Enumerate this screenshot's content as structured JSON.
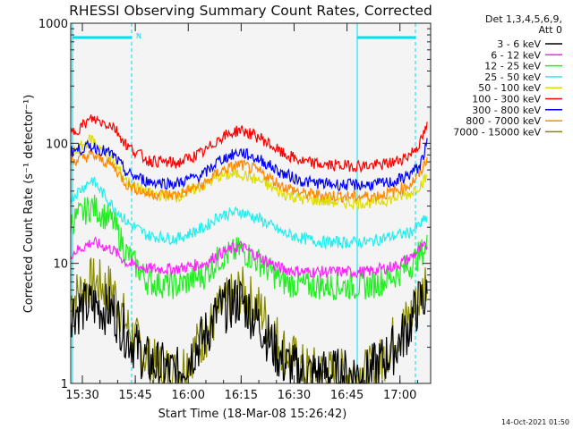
{
  "chart_data": {
    "type": "line",
    "title": "RHESSI Observing Summary Count Rates, Corrected",
    "xlabel": "Start Time (18-Mar-08 15:26:42)",
    "ylabel": "Corrected Count Rate (s⁻¹ detector⁻¹)",
    "x_ticks": [
      "15:30",
      "15:45",
      "16:00",
      "16:15",
      "16:30",
      "16:45",
      "17:00"
    ],
    "x_tick_minutes": [
      3.3,
      18.3,
      33.3,
      48.3,
      63.3,
      78.3,
      93.3
    ],
    "xlim_minutes": [
      0,
      102
    ],
    "y_scale": "log",
    "y_ticks": [
      "1000",
      "100",
      "10",
      "1"
    ],
    "y_tick_values": [
      1000,
      100,
      10,
      1
    ],
    "ylim": [
      1,
      1000
    ],
    "legend_header": [
      "Det 1,3,4,5,6,9,",
      "Att 0"
    ],
    "legend_position": "top-right",
    "x_minutes": [
      0,
      6,
      12,
      16,
      22,
      30,
      38,
      42,
      48,
      54,
      60,
      66,
      72,
      78,
      84,
      88,
      92,
      96,
      99,
      101
    ],
    "series": [
      {
        "name": "3 - 6 keV",
        "color": "#000000",
        "values": [
          4,
          4.5,
          4,
          2.5,
          1.5,
          1.2,
          2.5,
          4,
          5,
          3,
          1.5,
          1.2,
          1.2,
          1.2,
          1.2,
          1.5,
          2,
          3,
          5,
          5
        ]
      },
      {
        "name": "6 - 12 keV",
        "color": "#ff22ff",
        "values": [
          12,
          15,
          13,
          10,
          9,
          9,
          10,
          12,
          14,
          11,
          9,
          8.5,
          8.5,
          8.5,
          8.5,
          9,
          9.5,
          11,
          13,
          14
        ]
      },
      {
        "name": "12 - 25 keV",
        "color": "#22ee22",
        "values": [
          22,
          30,
          22,
          12,
          7,
          6.5,
          8,
          11,
          13,
          10,
          7,
          6.5,
          6.5,
          6.5,
          6.5,
          7,
          8,
          9.5,
          12,
          14
        ]
      },
      {
        "name": "25 - 50 keV",
        "color": "#22eeee",
        "values": [
          35,
          50,
          30,
          22,
          17,
          16,
          20,
          25,
          27,
          23,
          18,
          16,
          15,
          15,
          15,
          16,
          17,
          18,
          21,
          24
        ]
      },
      {
        "name": "50 - 100 keV",
        "color": "#dddd00",
        "values": [
          80,
          110,
          70,
          48,
          38,
          36,
          45,
          53,
          56,
          48,
          38,
          34,
          33,
          32,
          32,
          33,
          35,
          38,
          45,
          52
        ]
      },
      {
        "name": "100 - 300 keV",
        "color": "#ff0000",
        "values": [
          120,
          160,
          140,
          95,
          72,
          68,
          85,
          110,
          130,
          110,
          82,
          70,
          66,
          65,
          65,
          66,
          70,
          80,
          100,
          140
        ]
      },
      {
        "name": "300 - 800 keV",
        "color": "#0000ff",
        "values": [
          85,
          95,
          80,
          56,
          48,
          46,
          56,
          72,
          85,
          72,
          56,
          48,
          46,
          45,
          45,
          46,
          48,
          55,
          65,
          100
        ]
      },
      {
        "name": "800 - 7000 keV",
        "color": "#ff8800",
        "values": [
          70,
          80,
          65,
          45,
          38,
          37,
          46,
          58,
          67,
          57,
          44,
          38,
          37,
          36,
          36,
          37,
          40,
          45,
          56,
          75
        ]
      },
      {
        "name": "7000 - 15000 keV",
        "color": "#888800",
        "values": [
          5,
          7,
          6,
          3,
          1.5,
          1.2,
          2.5,
          4,
          6,
          4,
          2,
          1.3,
          1.2,
          1.2,
          1.2,
          1.5,
          2.5,
          3.5,
          5,
          8
        ]
      }
    ],
    "flag_text": "N",
    "footer_date": "14-Oct-2021 01:50"
  }
}
